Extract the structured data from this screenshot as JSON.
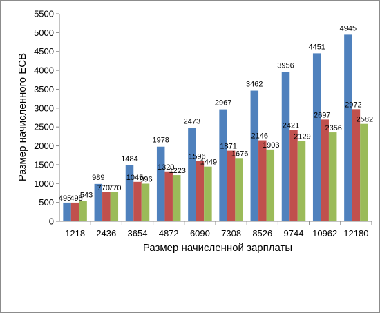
{
  "chart_data": {
    "type": "bar",
    "title": "",
    "xlabel": "Размер начисленной зарплаты",
    "ylabel": "Размер начисленного ЕСВ",
    "categories": [
      "1218",
      "2436",
      "3654",
      "4872",
      "6090",
      "7308",
      "8526",
      "9744",
      "10962",
      "12180"
    ],
    "series": [
      {
        "color": "#4f81bd",
        "values": [
          495,
          989,
          1484,
          1978,
          2473,
          2967,
          3462,
          3956,
          4451,
          4945
        ]
      },
      {
        "color": "#c0504d",
        "values": [
          495,
          770,
          1045,
          1320,
          1596,
          1871,
          2146,
          2421,
          2697,
          2972
        ]
      },
      {
        "color": "#9bbb59",
        "values": [
          543,
          770,
          996,
          1223,
          1449,
          1676,
          1903,
          2129,
          2356,
          2582
        ]
      }
    ],
    "ylim": [
      0,
      5500
    ],
    "yticks": [
      "0",
      "500",
      "1000",
      "1500",
      "2000",
      "2500",
      "3000",
      "3500",
      "4000",
      "4500",
      "5000",
      "5500"
    ],
    "grid": false,
    "legend": "none"
  }
}
